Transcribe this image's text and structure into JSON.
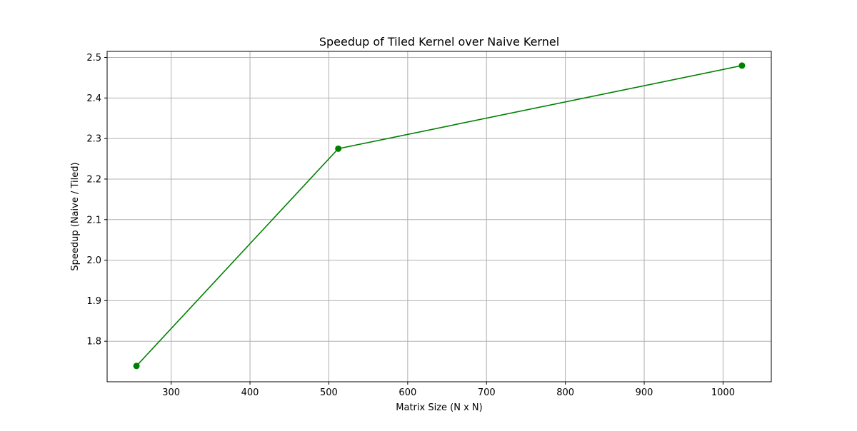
{
  "chart_data": {
    "type": "line",
    "title": "Speedup of Tiled Kernel over Naive Kernel",
    "xlabel": "Matrix Size (N x N)",
    "ylabel": "Speedup (Naive / Tiled)",
    "xlim": [
      218.8,
      1061.2
    ],
    "ylim": [
      1.7,
      2.515
    ],
    "xticks": [
      300,
      400,
      500,
      600,
      700,
      800,
      900,
      1000
    ],
    "yticks": [
      1.8,
      1.9,
      2.0,
      2.1,
      2.2,
      2.3,
      2.4,
      2.5
    ],
    "xtick_labels": [
      "300",
      "400",
      "500",
      "600",
      "700",
      "800",
      "900",
      "1000"
    ],
    "ytick_labels": [
      "1.8",
      "1.9",
      "2.0",
      "2.1",
      "2.2",
      "2.3",
      "2.4",
      "2.5"
    ],
    "grid": true,
    "legend": false,
    "series": [
      {
        "x": [
          256,
          512,
          1024
        ],
        "y": [
          1.739,
          2.275,
          2.48
        ],
        "color": "#008000",
        "marker": "circle"
      }
    ]
  }
}
